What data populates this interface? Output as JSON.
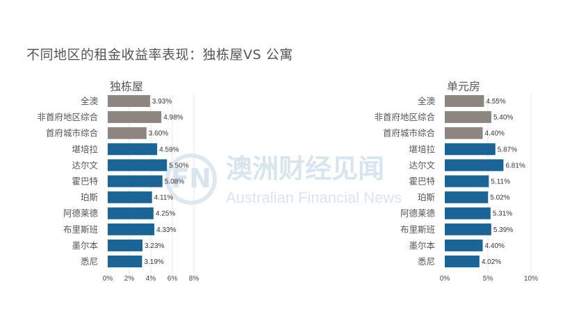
{
  "title": "不同地区的租金收益率表现：独栋屋VS 公寓",
  "watermark": {
    "logo_text": "FN",
    "cn": "澳洲财经见闻",
    "en": "Australian Financial News"
  },
  "colors": {
    "gray_bar": "#8c8580",
    "blue_bar": "#1b6496",
    "grid": "#e6e6e6"
  },
  "chart_data": [
    {
      "type": "bar",
      "orientation": "horizontal",
      "title": "独栋屋",
      "categories": [
        "全澳",
        "非首府地区综合",
        "首府城市综合",
        "堪培拉",
        "达尔文",
        "霍巴特",
        "珀斯",
        "阿德莱德",
        "布里斯班",
        "墨尔本",
        "悉尼"
      ],
      "values": [
        3.93,
        4.98,
        3.6,
        4.59,
        5.5,
        5.08,
        4.11,
        4.25,
        4.33,
        3.23,
        3.19
      ],
      "value_labels": [
        "3.93%",
        "4.98%",
        "3.60%",
        "4.59%",
        "5.50%",
        "5.08%",
        "4.11%",
        "4.25%",
        "4.33%",
        "3.23%",
        "3.19%"
      ],
      "bar_colors": [
        "gray",
        "gray",
        "gray",
        "blue",
        "blue",
        "blue",
        "blue",
        "blue",
        "blue",
        "blue",
        "blue"
      ],
      "xlim": [
        0,
        8
      ],
      "xticks": [
        0,
        2,
        4,
        6,
        8
      ],
      "xtick_labels": [
        "0%",
        "2%",
        "4%",
        "6%",
        "8%"
      ],
      "grid": true
    },
    {
      "type": "bar",
      "orientation": "horizontal",
      "title": "单元房",
      "categories": [
        "全澳",
        "非首府地区综合",
        "首府城市综合",
        "堪培拉",
        "达尔文",
        "霍巴特",
        "珀斯",
        "阿德莱德",
        "布里斯班",
        "墨尔本",
        "悉尼"
      ],
      "values": [
        4.55,
        5.4,
        4.4,
        5.87,
        6.81,
        5.11,
        5.02,
        5.31,
        5.39,
        4.4,
        4.02
      ],
      "value_labels": [
        "4.55%",
        "5.40%",
        "4.40%",
        "5.87%",
        "6.81%",
        "5.11%",
        "5.02%",
        "5.31%",
        "5.39%",
        "4.40%",
        "4.02%"
      ],
      "bar_colors": [
        "gray",
        "gray",
        "gray",
        "blue",
        "blue",
        "blue",
        "blue",
        "blue",
        "blue",
        "blue",
        "blue"
      ],
      "xlim": [
        0,
        10
      ],
      "xticks": [
        0,
        5,
        10
      ],
      "xtick_labels": [
        "0%",
        "5%",
        "10%"
      ],
      "grid": true
    }
  ]
}
